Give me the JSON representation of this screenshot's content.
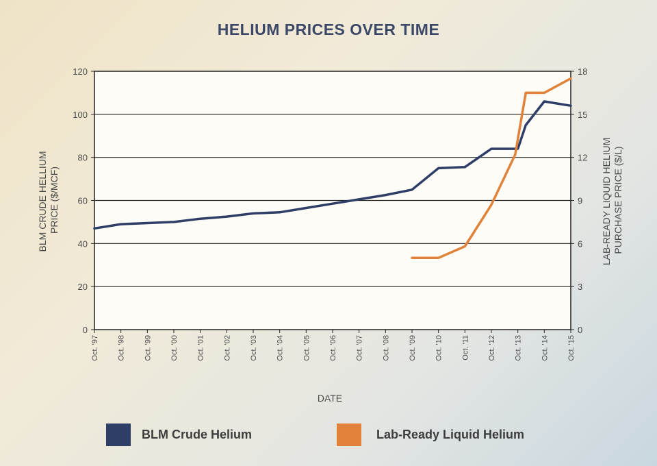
{
  "chart_data": {
    "type": "line",
    "title": "HELIUM PRICES OVER TIME",
    "xlabel": "DATE",
    "ylabel_left": "BLM CRUDE HELLIUM PRICE ($/MCF)",
    "ylabel_left_lines": [
      "BLM CRUDE HELLIUM",
      "PRICE ($/MCF)"
    ],
    "ylabel_right": "LAB-READY LIQUID HELIUM PURCHASE PRICE ($/L)",
    "ylabel_right_lines": [
      "LAB-READY LIQUID HELIUM",
      "PURCHASE PRICE ($/L)"
    ],
    "ylim_left": [
      0,
      120
    ],
    "ylim_right": [
      0,
      18
    ],
    "yticks_left": [
      "0",
      "20",
      "40",
      "60",
      "80",
      "100",
      "120"
    ],
    "yticks_right": [
      "0",
      "3",
      "6",
      "9",
      "12",
      "15",
      "18"
    ],
    "x": [
      "Oct. '97",
      "Oct. '98",
      "Oct. '99",
      "Oct. '00",
      "Oct. '01",
      "Oct. '02",
      "Oct. '03",
      "Oct. '04",
      "Oct. '05",
      "Oct. '06",
      "Oct. '07",
      "Oct. '08",
      "Oct. '09",
      "Oct. '10",
      "Oct. '11",
      "Oct. '12",
      "Oct. '13",
      "Oct. '14",
      "Oct. '15"
    ],
    "grid": "horizontal",
    "legend_position": "bottom",
    "series": [
      {
        "name": "BLM Crude Helium",
        "axis": "left",
        "color": "#2f3e67",
        "points": [
          [
            0,
            47
          ],
          [
            1,
            49
          ],
          [
            2,
            49.5
          ],
          [
            3,
            50
          ],
          [
            4,
            51.5
          ],
          [
            5,
            52.5
          ],
          [
            6,
            54
          ],
          [
            7,
            54.5
          ],
          [
            8,
            56.5
          ],
          [
            9,
            58.5
          ],
          [
            10,
            60.5
          ],
          [
            11,
            62.5
          ],
          [
            12,
            65
          ],
          [
            13,
            75
          ],
          [
            14,
            75.5
          ],
          [
            15,
            84
          ],
          [
            16,
            84
          ],
          [
            16.3,
            95
          ],
          [
            17,
            106
          ],
          [
            18,
            104
          ]
        ]
      },
      {
        "name": "Lab-Ready Liquid Helium",
        "axis": "right",
        "color": "#e0823a",
        "points": [
          [
            12,
            5
          ],
          [
            13,
            5
          ],
          [
            14,
            5.8
          ],
          [
            15,
            8.7
          ],
          [
            15.9,
            12.2
          ],
          [
            16.3,
            16.5
          ],
          [
            17,
            16.5
          ],
          [
            18,
            17.5
          ]
        ]
      }
    ]
  }
}
